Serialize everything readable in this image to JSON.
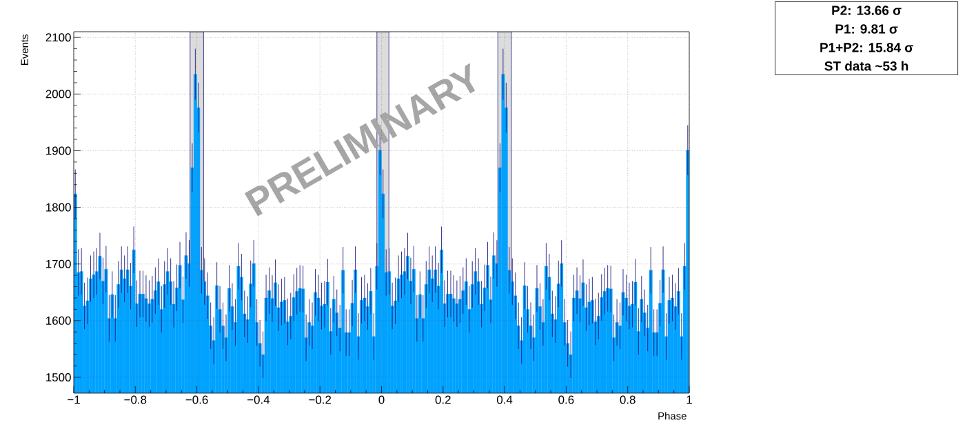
{
  "chart_data": {
    "type": "histogram",
    "xlabel": "Phase",
    "ylabel": "Events",
    "bins": [
      -1,
      -0.99,
      -0.98,
      -0.97,
      -0.96,
      -0.95,
      -0.94,
      -0.93,
      -0.92,
      -0.91,
      -0.9,
      -0.89,
      -0.88,
      -0.87,
      -0.86,
      -0.85,
      -0.84,
      -0.83,
      -0.82,
      -0.81,
      -0.8,
      -0.79,
      -0.78,
      -0.77,
      -0.76,
      -0.75,
      -0.74,
      -0.73,
      -0.72,
      -0.71,
      -0.7,
      -0.69,
      -0.68,
      -0.67,
      -0.66,
      -0.65,
      -0.64,
      -0.63,
      -0.62,
      -0.61,
      -0.6,
      -0.59,
      -0.58,
      -0.57,
      -0.56,
      -0.55,
      -0.54,
      -0.53,
      -0.52,
      -0.51,
      -0.5,
      -0.49,
      -0.48,
      -0.47,
      -0.46,
      -0.45,
      -0.44,
      -0.43,
      -0.42,
      -0.41,
      -0.4,
      -0.39,
      -0.38,
      -0.37,
      -0.36,
      -0.35,
      -0.34,
      -0.33,
      -0.32,
      -0.31,
      -0.3,
      -0.29,
      -0.28,
      -0.27,
      -0.26,
      -0.25,
      -0.24,
      -0.23,
      -0.22,
      -0.21,
      -0.2,
      -0.19,
      -0.18,
      -0.17,
      -0.16,
      -0.15,
      -0.14,
      -0.13,
      -0.12,
      -0.11,
      -0.1,
      -0.09,
      -0.08,
      -0.07,
      -0.06,
      -0.05,
      -0.04,
      -0.03,
      -0.02,
      -0.01,
      0,
      0.01,
      0.02,
      0.03,
      0.04,
      0.05,
      0.06,
      0.07,
      0.08,
      0.09,
      0.1,
      0.11,
      0.12,
      0.13,
      0.14,
      0.15,
      0.16,
      0.17,
      0.18,
      0.19,
      0.2,
      0.21,
      0.22,
      0.23,
      0.24,
      0.25,
      0.26,
      0.27,
      0.28,
      0.29,
      0.3,
      0.31,
      0.32,
      0.33,
      0.34,
      0.35,
      0.36,
      0.37,
      0.38,
      0.39,
      0.4,
      0.41,
      0.42,
      0.43,
      0.44,
      0.45,
      0.46,
      0.47,
      0.48,
      0.49,
      0.5,
      0.51,
      0.52,
      0.53,
      0.54,
      0.55,
      0.56,
      0.57,
      0.58,
      0.59,
      0.6,
      0.61,
      0.62,
      0.63,
      0.64,
      0.65,
      0.66,
      0.67,
      0.68,
      0.69,
      0.7,
      0.71,
      0.72,
      0.73,
      0.74,
      0.75,
      0.76,
      0.77,
      0.78,
      0.79,
      0.8,
      0.81,
      0.82,
      0.83,
      0.84,
      0.85,
      0.86,
      0.87,
      0.88,
      0.89,
      0.9,
      0.91,
      0.92,
      0.93,
      0.94,
      0.95,
      0.96,
      0.97,
      0.98,
      0.99,
      1
    ],
    "values": [
      1824,
      1685,
      1687,
      1626,
      1635,
      1674,
      1681,
      1687,
      1714,
      1670,
      1691,
      1604,
      1646,
      1604,
      1664,
      1690,
      1674,
      1690,
      1661,
      1725,
      1630,
      1647,
      1647,
      1639,
      1630,
      1638,
      1653,
      1669,
      1620,
      1664,
      1687,
      1669,
      1629,
      1658,
      1698,
      1637,
      1715,
      1701,
      1870,
      2035,
      1976,
      1689,
      1669,
      1644,
      1591,
      1565,
      1662,
      1620,
      1591,
      1570,
      1657,
      1625,
      1597,
      1696,
      1677,
      1612,
      1602,
      1665,
      1701,
      1597,
      1560,
      1540,
      1640,
      1653,
      1639,
      1667,
      1623,
      1633,
      1636,
      1598,
      1608,
      1641,
      1652,
      1657,
      1656,
      1570,
      1597,
      1591,
      1650,
      1640,
      1626,
      1629,
      1668,
      1581,
      1638,
      1614,
      1587,
      1689,
      1579,
      1579,
      1631,
      1690,
      1572,
      1636,
      1640,
      1625,
      1652,
      1572,
      1696,
      1901,
      1824,
      1685,
      1687,
      1626,
      1635,
      1674,
      1681,
      1687,
      1714,
      1670,
      1691,
      1604,
      1646,
      1604,
      1664,
      1690,
      1674,
      1690,
      1661,
      1725,
      1630,
      1647,
      1647,
      1639,
      1630,
      1638,
      1653,
      1669,
      1620,
      1664,
      1687,
      1669,
      1629,
      1658,
      1698,
      1637,
      1715,
      1701,
      1870,
      2035,
      1976,
      1689,
      1669,
      1644,
      1591,
      1565,
      1662,
      1620,
      1591,
      1570,
      1657,
      1625,
      1597,
      1696,
      1677,
      1612,
      1602,
      1665,
      1701,
      1597,
      1560,
      1540,
      1640,
      1653,
      1639,
      1667,
      1623,
      1633,
      1636,
      1598,
      1608,
      1641,
      1652,
      1657,
      1656,
      1570,
      1597,
      1591,
      1650,
      1640,
      1626,
      1629,
      1668,
      1581,
      1638,
      1614,
      1587,
      1689,
      1579,
      1579,
      1631,
      1690,
      1572,
      1636,
      1640,
      1625,
      1652,
      1572,
      1696,
      1901
    ],
    "errors": [
      43,
      41,
      41,
      41,
      41,
      41,
      41,
      41,
      41,
      41,
      41,
      41,
      41,
      41,
      41,
      41,
      41,
      41,
      41,
      41,
      41,
      41,
      41,
      41,
      41,
      41,
      41,
      41,
      41,
      41,
      41,
      41,
      41,
      41,
      41,
      41,
      41,
      41,
      43,
      45,
      44,
      41,
      41,
      41,
      41,
      41,
      41,
      41,
      41,
      41,
      41,
      41,
      41,
      41,
      41,
      41,
      41,
      41,
      41,
      41,
      41,
      41,
      41,
      41,
      41,
      41,
      41,
      41,
      41,
      41,
      41,
      41,
      41,
      41,
      41,
      41,
      41,
      41,
      41,
      41,
      41,
      41,
      41,
      41,
      41,
      41,
      41,
      41,
      41,
      41,
      41,
      41,
      41,
      41,
      41,
      41,
      41,
      41,
      41,
      44,
      43,
      41,
      41,
      41,
      41,
      41,
      41,
      41,
      41,
      41,
      41,
      41,
      41,
      41,
      41,
      41,
      41,
      41,
      41,
      41,
      41,
      41,
      41,
      41,
      41,
      41,
      41,
      41,
      41,
      41,
      41,
      41,
      41,
      41,
      41,
      41,
      41,
      41,
      43,
      45,
      44,
      41,
      41,
      41,
      41,
      41,
      41,
      41,
      41,
      41,
      41,
      41,
      41,
      41,
      41,
      41,
      41,
      41,
      41,
      41,
      41,
      41,
      41,
      41,
      41,
      41,
      41,
      41,
      41,
      41,
      41,
      41,
      41,
      41,
      41,
      41,
      41,
      41,
      41,
      41,
      41,
      41,
      41,
      41,
      41,
      41,
      41,
      41,
      41,
      41,
      41,
      41,
      41,
      41,
      41,
      41,
      41,
      41,
      41,
      44
    ],
    "color": "#00a2ff",
    "xlim": [
      -1,
      1
    ],
    "ylim": [
      1472,
      2110
    ],
    "xticks": [
      {
        "value": -1,
        "label": "−1"
      },
      {
        "value": -0.8,
        "label": "−0.8"
      },
      {
        "value": -0.6,
        "label": "−0.6"
      },
      {
        "value": -0.4,
        "label": "−0.4"
      },
      {
        "value": -0.2,
        "label": "−0.2"
      },
      0,
      0.2,
      0.4,
      0.6,
      0.8,
      1
    ],
    "yticks": [
      1500,
      1600,
      1700,
      1800,
      1900,
      2000,
      2100
    ],
    "grid": true,
    "bands": [
      {
        "axis": "x",
        "from": -0.622,
        "to": -0.578,
        "color": "#dcdcdc"
      },
      {
        "axis": "x",
        "from": -0.015,
        "to": 0.024,
        "color": "#dcdcdc"
      },
      {
        "axis": "x",
        "from": 0.378,
        "to": 0.422,
        "color": "#dcdcdc"
      }
    ],
    "annotations": [
      "P2: 13.66 σ",
      "P1: 9.81 σ",
      "P1+P2: 15.84 σ",
      "ST data ~53 h",
      "PRELIMINARY"
    ]
  }
}
